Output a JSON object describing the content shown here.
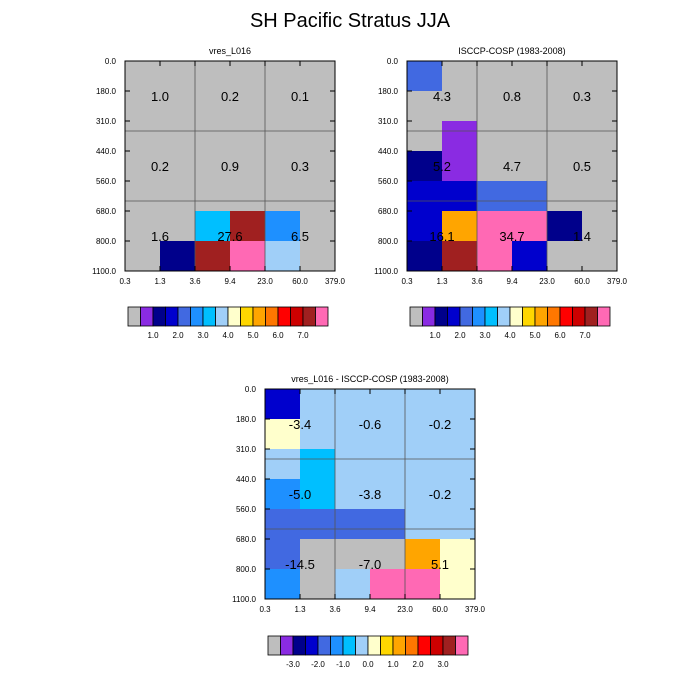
{
  "title": "SH Pacific Stratus JJA",
  "colors": {
    "palette": [
      "#bebebe",
      "#8a2be2",
      "#00008b",
      "#0000cd",
      "#4169e1",
      "#1e90ff",
      "#00bfff",
      "#a0cff8",
      "#ffffcc",
      "#ffd700",
      "#ffa500",
      "#ff7700",
      "#ff0000",
      "#cd0000",
      "#a02020",
      "#ff69b4"
    ]
  },
  "chart_data": [
    {
      "type": "heatmap",
      "title": "vres_L016",
      "x_ticks": [
        "0.3",
        "1.3",
        "3.6",
        "9.4",
        "23.0",
        "60.0",
        "379.0"
      ],
      "y_ticks": [
        "0.0",
        "180.0",
        "310.0",
        "440.0",
        "560.0",
        "680.0",
        "800.0",
        "1100.0"
      ],
      "grid": true,
      "cell_color_index": [
        [
          0,
          0,
          0,
          0,
          0,
          0
        ],
        [
          0,
          0,
          0,
          0,
          0,
          0
        ],
        [
          0,
          0,
          0,
          0,
          0,
          0
        ],
        [
          0,
          0,
          0,
          0,
          0,
          0
        ],
        [
          0,
          0,
          0,
          0,
          0,
          0
        ],
        [
          0,
          0,
          6,
          14,
          5,
          0
        ],
        [
          0,
          2,
          14,
          15,
          7,
          0
        ]
      ],
      "annotations": [
        {
          "row": 0,
          "col": 0,
          "text": "1.0"
        },
        {
          "row": 0,
          "col": 1,
          "text": "0.2"
        },
        {
          "row": 0,
          "col": 2,
          "text": "0.1"
        },
        {
          "row": 1,
          "col": 0,
          "text": "0.2"
        },
        {
          "row": 1,
          "col": 1,
          "text": "0.9"
        },
        {
          "row": 1,
          "col": 2,
          "text": "0.3"
        },
        {
          "row": 2,
          "col": 0,
          "text": "1.6"
        },
        {
          "row": 2,
          "col": 1,
          "text": "27.6"
        },
        {
          "row": 2,
          "col": 2,
          "text": "6.5"
        }
      ],
      "colorbar": {
        "labels": [
          "1.0",
          "2.0",
          "3.0",
          "4.0",
          "5.0",
          "6.0",
          "7.0"
        ]
      }
    },
    {
      "type": "heatmap",
      "title": "ISCCP-COSP (1983-2008)",
      "x_ticks": [
        "0.3",
        "1.3",
        "3.6",
        "9.4",
        "23.0",
        "60.0",
        "379.0"
      ],
      "y_ticks": [
        "0.0",
        "180.0",
        "310.0",
        "440.0",
        "560.0",
        "680.0",
        "800.0",
        "1100.0"
      ],
      "grid": true,
      "cell_color_index": [
        [
          4,
          0,
          0,
          0,
          0,
          0
        ],
        [
          0,
          0,
          0,
          0,
          0,
          0
        ],
        [
          0,
          1,
          0,
          0,
          0,
          0
        ],
        [
          2,
          1,
          0,
          0,
          0,
          0
        ],
        [
          3,
          3,
          4,
          4,
          0,
          0
        ],
        [
          3,
          10,
          15,
          15,
          2,
          0
        ],
        [
          2,
          14,
          15,
          3,
          0,
          0
        ]
      ],
      "annotations": [
        {
          "row": 0,
          "col": 0,
          "text": "4.3"
        },
        {
          "row": 0,
          "col": 1,
          "text": "0.8"
        },
        {
          "row": 0,
          "col": 2,
          "text": "0.3"
        },
        {
          "row": 1,
          "col": 0,
          "text": "5.2"
        },
        {
          "row": 1,
          "col": 1,
          "text": "4.7"
        },
        {
          "row": 1,
          "col": 2,
          "text": "0.5"
        },
        {
          "row": 2,
          "col": 0,
          "text": "16.1"
        },
        {
          "row": 2,
          "col": 1,
          "text": "34.7"
        },
        {
          "row": 2,
          "col": 2,
          "text": "1.4"
        }
      ],
      "colorbar": {
        "labels": [
          "1.0",
          "2.0",
          "3.0",
          "4.0",
          "5.0",
          "6.0",
          "7.0"
        ]
      }
    },
    {
      "type": "heatmap",
      "title": "vres_L016 - ISCCP-COSP (1983-2008)",
      "x_ticks": [
        "0.3",
        "1.3",
        "3.6",
        "9.4",
        "23.0",
        "60.0",
        "379.0"
      ],
      "y_ticks": [
        "0.0",
        "180.0",
        "310.0",
        "440.0",
        "560.0",
        "680.0",
        "800.0",
        "1100.0"
      ],
      "grid": true,
      "cell_color_index": [
        [
          3,
          7,
          7,
          7,
          7,
          7
        ],
        [
          8,
          7,
          7,
          7,
          7,
          7
        ],
        [
          7,
          6,
          7,
          7,
          7,
          7
        ],
        [
          5,
          6,
          7,
          7,
          7,
          7
        ],
        [
          4,
          4,
          4,
          4,
          7,
          7
        ],
        [
          4,
          0,
          0,
          0,
          10,
          8
        ],
        [
          5,
          0,
          7,
          15,
          15,
          8
        ]
      ],
      "annotations": [
        {
          "row": 0,
          "col": 0,
          "text": "-3.4"
        },
        {
          "row": 0,
          "col": 1,
          "text": "-0.6"
        },
        {
          "row": 0,
          "col": 2,
          "text": "-0.2"
        },
        {
          "row": 1,
          "col": 0,
          "text": "-5.0"
        },
        {
          "row": 1,
          "col": 1,
          "text": "-3.8"
        },
        {
          "row": 1,
          "col": 2,
          "text": "-0.2"
        },
        {
          "row": 2,
          "col": 0,
          "text": "-14.5"
        },
        {
          "row": 2,
          "col": 1,
          "text": "-7.0"
        },
        {
          "row": 2,
          "col": 2,
          "text": "5.1"
        }
      ],
      "colorbar": {
        "labels": [
          "-3.0",
          "-2.0",
          "-1.0",
          "0.0",
          "1.0",
          "2.0",
          "3.0"
        ]
      }
    }
  ]
}
